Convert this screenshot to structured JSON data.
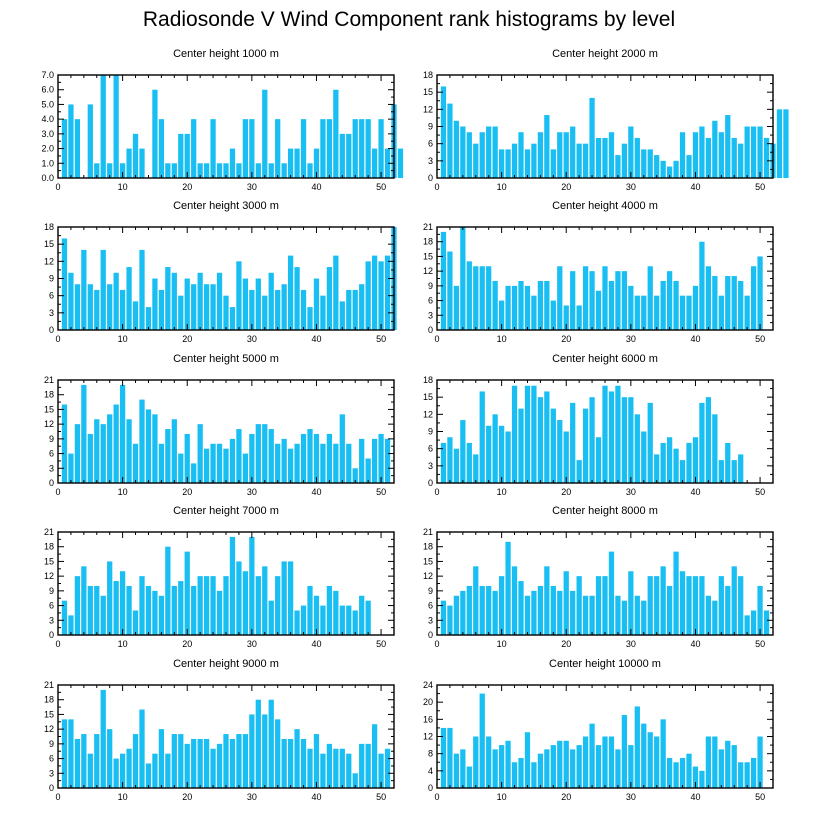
{
  "figure_title": "Radiosonde V Wind Component rank histograms by level",
  "colors": {
    "bar": "#19BFF2",
    "bar_edge": "#FFFFFF",
    "axis": "#000000",
    "background": "#FFFFFF"
  },
  "chart_data": [
    {
      "type": "bar",
      "title": "Center height 1000 m",
      "xlim": [
        0,
        52
      ],
      "ylim": [
        0,
        7
      ],
      "xticks": [
        0,
        10,
        20,
        30,
        40,
        50
      ],
      "yticks": [
        "0.0",
        "1.0",
        "2.0",
        "3.0",
        "4.0",
        "5.0",
        "6.0",
        "7.0"
      ],
      "values": [
        4,
        5,
        4,
        0,
        5,
        1,
        7,
        1,
        7,
        1,
        2,
        3,
        2,
        0,
        6,
        4,
        1,
        1,
        3,
        3,
        4,
        1,
        1,
        4,
        1,
        1,
        2,
        1,
        4,
        4,
        1,
        6,
        1,
        4,
        1,
        2,
        2,
        4,
        1,
        2,
        4,
        4,
        6,
        3,
        3,
        4,
        4,
        4,
        2,
        4,
        2,
        5,
        2
      ]
    },
    {
      "type": "bar",
      "title": "Center height 2000 m",
      "xlim": [
        0,
        52
      ],
      "ylim": [
        0,
        18
      ],
      "xticks": [
        0,
        10,
        20,
        30,
        40,
        50
      ],
      "yticks": [
        "0",
        "3",
        "6",
        "9",
        "12",
        "15",
        "18"
      ],
      "values": [
        16,
        13,
        10,
        9,
        8,
        6,
        8,
        9,
        9,
        5,
        5,
        6,
        8,
        5,
        6,
        8,
        11,
        5,
        8,
        8,
        9,
        6,
        6,
        14,
        7,
        7,
        8,
        4,
        6,
        9,
        7,
        5,
        5,
        4,
        3,
        2,
        3,
        8,
        4,
        8,
        9,
        7,
        10,
        8,
        11,
        7,
        6,
        9,
        9,
        9,
        7,
        6,
        12,
        12
      ]
    },
    {
      "type": "bar",
      "title": "Center height 3000 m",
      "xlim": [
        0,
        52
      ],
      "ylim": [
        0,
        18
      ],
      "xticks": [
        0,
        10,
        20,
        30,
        40,
        50
      ],
      "yticks": [
        "0",
        "3",
        "6",
        "9",
        "12",
        "15",
        "18"
      ],
      "values": [
        16,
        10,
        8,
        14,
        8,
        7,
        14,
        8,
        10,
        7,
        11,
        5,
        14,
        4,
        9,
        7,
        11,
        10,
        6,
        9,
        8,
        10,
        8,
        8,
        10,
        6,
        4,
        12,
        9,
        7,
        9,
        6,
        10,
        7,
        8,
        13,
        11,
        7,
        4,
        9,
        6,
        11,
        13,
        5,
        7,
        7,
        8,
        12,
        13,
        12,
        13,
        18
      ]
    },
    {
      "type": "bar",
      "title": "Center height 4000 m",
      "xlim": [
        0,
        52
      ],
      "ylim": [
        0,
        21
      ],
      "xticks": [
        0,
        10,
        20,
        30,
        40,
        50
      ],
      "yticks": [
        "0",
        "3",
        "6",
        "9",
        "12",
        "15",
        "18",
        "21"
      ],
      "values": [
        20,
        16,
        9,
        21,
        14,
        13,
        13,
        13,
        10,
        6,
        9,
        9,
        10,
        9,
        7,
        10,
        10,
        6,
        13,
        5,
        12,
        5,
        13,
        12,
        8,
        13,
        10,
        12,
        12,
        9,
        7,
        7,
        13,
        7,
        10,
        12,
        10,
        7,
        7,
        9,
        18,
        13,
        11,
        7,
        11,
        11,
        10,
        7,
        13,
        15
      ]
    },
    {
      "type": "bar",
      "title": "Center height 5000 m",
      "xlim": [
        0,
        52
      ],
      "ylim": [
        0,
        21
      ],
      "xticks": [
        0,
        10,
        20,
        30,
        40,
        50
      ],
      "yticks": [
        "0",
        "3",
        "6",
        "9",
        "12",
        "15",
        "18",
        "21"
      ],
      "values": [
        16,
        6,
        12,
        20,
        10,
        13,
        12,
        14,
        16,
        20,
        13,
        8,
        17,
        15,
        14,
        8,
        11,
        13,
        6,
        10,
        4,
        12,
        7,
        8,
        8,
        7,
        9,
        11,
        6,
        10,
        12,
        12,
        11,
        8,
        9,
        7,
        8,
        10,
        11,
        10,
        8,
        10,
        8,
        14,
        8,
        3,
        9,
        5,
        9,
        10,
        9
      ]
    },
    {
      "type": "bar",
      "title": "Center height 6000 m",
      "xlim": [
        0,
        52
      ],
      "ylim": [
        0,
        18
      ],
      "xticks": [
        0,
        10,
        20,
        30,
        40,
        50
      ],
      "yticks": [
        "0",
        "3",
        "6",
        "9",
        "12",
        "15",
        "18"
      ],
      "values": [
        7,
        8,
        6,
        11,
        7,
        5,
        16,
        10,
        12,
        10,
        9,
        17,
        13,
        17,
        17,
        15,
        16,
        13,
        11,
        9,
        14,
        4,
        13,
        15,
        8,
        17,
        16,
        17,
        15,
        15,
        12,
        9,
        14,
        5,
        7,
        8,
        6,
        4,
        7,
        8,
        14,
        15,
        12,
        4,
        7,
        4,
        5
      ]
    },
    {
      "type": "bar",
      "title": "Center height 7000 m",
      "xlim": [
        0,
        52
      ],
      "ylim": [
        0,
        21
      ],
      "xticks": [
        0,
        10,
        20,
        30,
        40,
        50
      ],
      "yticks": [
        "0",
        "3",
        "6",
        "9",
        "12",
        "15",
        "18",
        "21"
      ],
      "values": [
        7,
        4,
        12,
        14,
        10,
        10,
        8,
        15,
        11,
        13,
        10,
        5,
        12,
        10,
        9,
        8,
        18,
        10,
        11,
        17,
        10,
        12,
        12,
        12,
        9,
        12,
        20,
        15,
        13,
        20,
        12,
        14,
        7,
        12,
        15,
        15,
        5,
        6,
        10,
        8,
        6,
        10,
        9,
        6,
        6,
        5,
        8,
        7
      ]
    },
    {
      "type": "bar",
      "title": "Center height 8000 m",
      "xlim": [
        0,
        52
      ],
      "ylim": [
        0,
        21
      ],
      "xticks": [
        0,
        10,
        20,
        30,
        40,
        50
      ],
      "yticks": [
        "0",
        "3",
        "6",
        "9",
        "12",
        "15",
        "18",
        "21"
      ],
      "values": [
        7,
        6,
        8,
        9,
        10,
        14,
        10,
        10,
        9,
        12,
        19,
        14,
        11,
        8,
        9,
        10,
        14,
        10,
        9,
        13,
        9,
        12,
        8,
        8,
        12,
        12,
        17,
        8,
        7,
        13,
        8,
        7,
        12,
        12,
        14,
        10,
        17,
        13,
        12,
        12,
        12,
        8,
        7,
        12,
        10,
        14,
        12,
        4,
        5,
        10,
        5
      ]
    },
    {
      "type": "bar",
      "title": "Center height 9000 m",
      "xlim": [
        0,
        52
      ],
      "ylim": [
        0,
        21
      ],
      "xticks": [
        0,
        10,
        20,
        30,
        40,
        50
      ],
      "yticks": [
        "0",
        "3",
        "6",
        "9",
        "12",
        "15",
        "18",
        "21"
      ],
      "values": [
        14,
        14,
        10,
        11,
        7,
        11,
        20,
        12,
        6,
        7,
        8,
        11,
        16,
        5,
        7,
        12,
        7,
        11,
        11,
        9,
        10,
        10,
        10,
        8,
        9,
        11,
        10,
        11,
        11,
        15,
        18,
        15,
        18,
        14,
        10,
        10,
        12,
        10,
        8,
        11,
        7,
        9,
        8,
        8,
        7,
        3,
        9,
        9,
        13,
        7,
        8
      ]
    },
    {
      "type": "bar",
      "title": "Center height 10000 m",
      "xlim": [
        0,
        52
      ],
      "ylim": [
        0,
        24
      ],
      "xticks": [
        0,
        10,
        20,
        30,
        40,
        50
      ],
      "yticks": [
        "0",
        "4",
        "8",
        "12",
        "16",
        "20",
        "24"
      ],
      "values": [
        14,
        14,
        8,
        9,
        5,
        12,
        22,
        12,
        9,
        10,
        11,
        6,
        7,
        13,
        6,
        8,
        9,
        10,
        11,
        11,
        9,
        10,
        12,
        15,
        10,
        12,
        12,
        9,
        17,
        10,
        19,
        15,
        13,
        12,
        16,
        7,
        6,
        7,
        8,
        5,
        4,
        12,
        12,
        9,
        11,
        10,
        6,
        6,
        7,
        12
      ]
    }
  ]
}
